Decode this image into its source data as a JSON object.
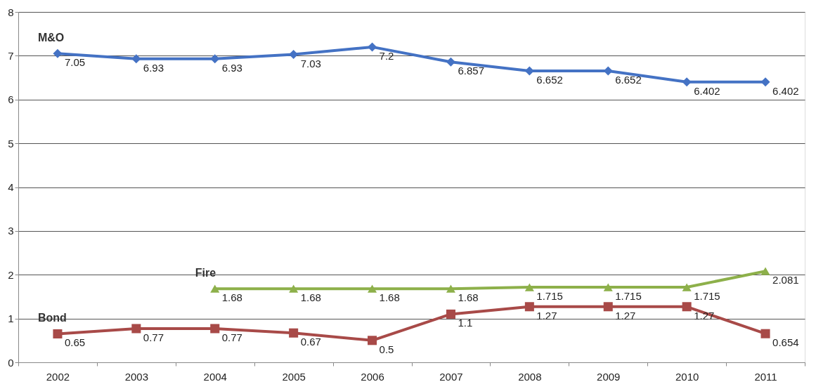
{
  "chart_data": {
    "type": "line",
    "categories": [
      "2002",
      "2003",
      "2004",
      "2005",
      "2006",
      "2007",
      "2008",
      "2009",
      "2010",
      "2011"
    ],
    "series": [
      {
        "name": "M&O",
        "color": "#4472c4",
        "marker": "diamond",
        "values": [
          7.05,
          6.93,
          6.93,
          7.03,
          7.2,
          6.857,
          6.652,
          6.652,
          6.402,
          6.402
        ]
      },
      {
        "name": "Fire",
        "color": "#8db04a",
        "marker": "triangle",
        "values": [
          null,
          null,
          1.68,
          1.68,
          1.68,
          1.68,
          1.715,
          1.715,
          1.715,
          2.081
        ]
      },
      {
        "name": "Bond",
        "color": "#a84a48",
        "marker": "square",
        "values": [
          0.65,
          0.77,
          0.77,
          0.67,
          0.5,
          1.1,
          1.27,
          1.27,
          1.27,
          0.654
        ]
      }
    ],
    "ylim": [
      0,
      8
    ],
    "yticks": [
      0,
      1,
      2,
      3,
      4,
      5,
      6,
      7,
      8
    ],
    "grid": "y",
    "legend": false,
    "data_labels": true
  }
}
